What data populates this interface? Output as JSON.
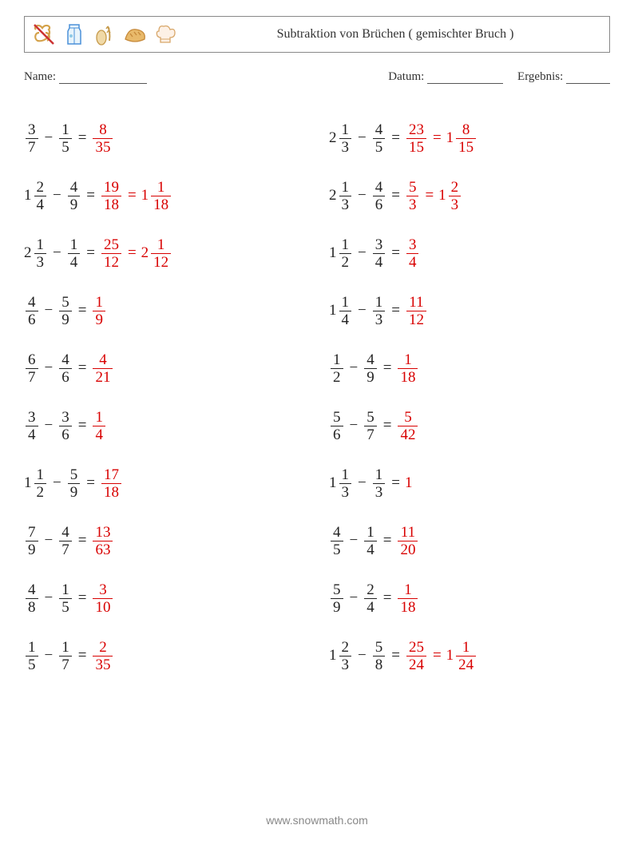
{
  "header": {
    "title": "Subtraktion von Brüchen ( gemischter Bruch )",
    "icons": [
      "pretzel-icon",
      "milk-carton-icon",
      "wheat-bread-icon",
      "bread-loaf-icon",
      "chef-hat-icon"
    ]
  },
  "meta": {
    "name_label": "Name:",
    "date_label": "Datum:",
    "result_label": "Ergebnis:"
  },
  "colors": {
    "answer": "#d80000",
    "text": "#222222",
    "border": "#888888"
  },
  "footer": "www.snowmath.com",
  "problems_left": [
    {
      "a": {
        "n": 3,
        "d": 7
      },
      "b": {
        "n": 1,
        "d": 5
      },
      "r1": {
        "n": 8,
        "d": 35
      }
    },
    {
      "a": {
        "w": 1,
        "n": 2,
        "d": 4
      },
      "b": {
        "n": 4,
        "d": 9
      },
      "r1": {
        "n": 19,
        "d": 18
      },
      "r2": {
        "w": 1,
        "n": 1,
        "d": 18
      }
    },
    {
      "a": {
        "w": 2,
        "n": 1,
        "d": 3
      },
      "b": {
        "n": 1,
        "d": 4
      },
      "r1": {
        "n": 25,
        "d": 12
      },
      "r2": {
        "w": 2,
        "n": 1,
        "d": 12
      }
    },
    {
      "a": {
        "n": 4,
        "d": 6
      },
      "b": {
        "n": 5,
        "d": 9
      },
      "r1": {
        "n": 1,
        "d": 9
      }
    },
    {
      "a": {
        "n": 6,
        "d": 7
      },
      "b": {
        "n": 4,
        "d": 6
      },
      "r1": {
        "n": 4,
        "d": 21
      }
    },
    {
      "a": {
        "n": 3,
        "d": 4
      },
      "b": {
        "n": 3,
        "d": 6
      },
      "r1": {
        "n": 1,
        "d": 4
      }
    },
    {
      "a": {
        "w": 1,
        "n": 1,
        "d": 2
      },
      "b": {
        "n": 5,
        "d": 9
      },
      "r1": {
        "n": 17,
        "d": 18
      }
    },
    {
      "a": {
        "n": 7,
        "d": 9
      },
      "b": {
        "n": 4,
        "d": 7
      },
      "r1": {
        "n": 13,
        "d": 63
      }
    },
    {
      "a": {
        "n": 4,
        "d": 8
      },
      "b": {
        "n": 1,
        "d": 5
      },
      "r1": {
        "n": 3,
        "d": 10
      }
    },
    {
      "a": {
        "n": 1,
        "d": 5
      },
      "b": {
        "n": 1,
        "d": 7
      },
      "r1": {
        "n": 2,
        "d": 35
      }
    }
  ],
  "problems_right": [
    {
      "a": {
        "w": 2,
        "n": 1,
        "d": 3
      },
      "b": {
        "n": 4,
        "d": 5
      },
      "r1": {
        "n": 23,
        "d": 15
      },
      "r2": {
        "w": 1,
        "n": 8,
        "d": 15
      }
    },
    {
      "a": {
        "w": 2,
        "n": 1,
        "d": 3
      },
      "b": {
        "n": 4,
        "d": 6
      },
      "r1": {
        "n": 5,
        "d": 3
      },
      "r2": {
        "w": 1,
        "n": 2,
        "d": 3
      }
    },
    {
      "a": {
        "w": 1,
        "n": 1,
        "d": 2
      },
      "b": {
        "n": 3,
        "d": 4
      },
      "r1": {
        "n": 3,
        "d": 4
      }
    },
    {
      "a": {
        "w": 1,
        "n": 1,
        "d": 4
      },
      "b": {
        "n": 1,
        "d": 3
      },
      "r1": {
        "n": 11,
        "d": 12
      }
    },
    {
      "a": {
        "n": 1,
        "d": 2
      },
      "b": {
        "n": 4,
        "d": 9
      },
      "r1": {
        "n": 1,
        "d": 18
      }
    },
    {
      "a": {
        "n": 5,
        "d": 6
      },
      "b": {
        "n": 5,
        "d": 7
      },
      "r1": {
        "n": 5,
        "d": 42
      }
    },
    {
      "a": {
        "w": 1,
        "n": 1,
        "d": 3
      },
      "b": {
        "n": 1,
        "d": 3
      },
      "r1": {
        "int": 1
      }
    },
    {
      "a": {
        "n": 4,
        "d": 5
      },
      "b": {
        "n": 1,
        "d": 4
      },
      "r1": {
        "n": 11,
        "d": 20
      }
    },
    {
      "a": {
        "n": 5,
        "d": 9
      },
      "b": {
        "n": 2,
        "d": 4
      },
      "r1": {
        "n": 1,
        "d": 18
      }
    },
    {
      "a": {
        "w": 1,
        "n": 2,
        "d": 3
      },
      "b": {
        "n": 5,
        "d": 8
      },
      "r1": {
        "n": 25,
        "d": 24
      },
      "r2": {
        "w": 1,
        "n": 1,
        "d": 24
      }
    }
  ]
}
